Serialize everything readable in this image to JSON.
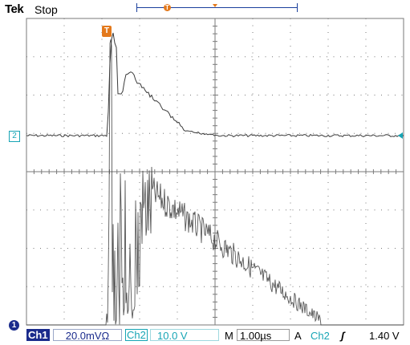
{
  "header": {
    "brand": "Tek",
    "run_state": "Stop",
    "trigger_position_marker": "T"
  },
  "markers": {
    "ch2_ground": "2",
    "ch1_ground": "1",
    "trigger_time": "T"
  },
  "status_bar": {
    "ch1_label": "Ch1",
    "ch1_scale": "20.0mVΩ",
    "ch2_label": "Ch2",
    "ch2_scale": "10.0 V",
    "timebase_label": "M",
    "timebase_scale": "1.00µs",
    "acquire_mode": "A",
    "trigger_source": "Ch2",
    "trigger_slope_icon": "rising-edge-icon",
    "trigger_slope_glyph": "ʃ",
    "trigger_level": "1.40 V"
  },
  "colors": {
    "ch1": "#1a2b8c",
    "ch2": "#17a5b5",
    "trigger": "#e3791c",
    "trace": "#3a3a3a",
    "grid": "#7a7a7a"
  }
}
